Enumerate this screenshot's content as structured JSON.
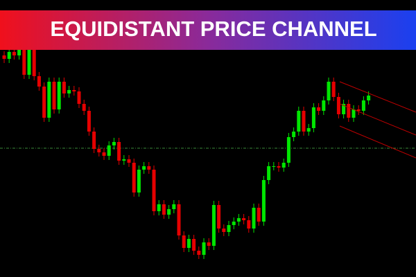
{
  "chart_data": {
    "type": "candlestick",
    "title": "EQUIDISTANT PRICE CHANNEL",
    "up_color": "#00e600",
    "down_color": "#e60000",
    "ylim": [
      0,
      400
    ],
    "open": [
      320,
      315,
      325,
      320,
      330,
      292,
      328,
      290,
      275,
      230,
      282,
      242,
      282,
      265,
      270,
      268,
      250,
      240,
      210,
      185,
      180,
      175,
      190,
      195,
      168,
      170,
      165,
      122,
      155,
      160,
      155,
      95,
      105,
      90,
      98,
      105,
      60,
      42,
      55,
      38,
      32,
      50,
      45,
      104,
      70,
      65,
      75,
      80,
      85,
      82,
      70,
      100,
      80,
      140,
      160,
      160,
      158,
      165,
      202,
      210,
      240,
      210,
      215,
      245,
      240,
      255,
      282,
      260,
      235,
      250,
      230,
      242,
      240,
      255
    ],
    "high": [
      326,
      331,
      331,
      336,
      336,
      334,
      334,
      296,
      281,
      288,
      288,
      288,
      288,
      276,
      276,
      274,
      256,
      246,
      216,
      191,
      186,
      196,
      201,
      201,
      176,
      176,
      171,
      161,
      166,
      166,
      161,
      111,
      111,
      104,
      111,
      111,
      66,
      61,
      61,
      44,
      56,
      56,
      110,
      110,
      76,
      81,
      86,
      91,
      91,
      88,
      106,
      106,
      146,
      166,
      166,
      166,
      171,
      208,
      216,
      246,
      246,
      221,
      251,
      251,
      261,
      288,
      288,
      266,
      256,
      256,
      248,
      248,
      261,
      268
    ],
    "low": [
      309,
      309,
      314,
      314,
      286,
      286,
      284,
      269,
      224,
      224,
      236,
      236,
      259,
      259,
      262,
      244,
      234,
      204,
      179,
      174,
      169,
      169,
      184,
      162,
      162,
      159,
      116,
      116,
      149,
      149,
      89,
      89,
      84,
      84,
      92,
      54,
      36,
      36,
      32,
      26,
      26,
      39,
      39,
      64,
      59,
      59,
      69,
      74,
      76,
      64,
      64,
      74,
      74,
      134,
      154,
      152,
      152,
      159,
      196,
      204,
      204,
      204,
      209,
      234,
      234,
      249,
      254,
      229,
      229,
      224,
      224,
      234,
      234,
      249
    ],
    "close": [
      315,
      325,
      320,
      330,
      292,
      328,
      290,
      275,
      230,
      282,
      242,
      282,
      265,
      270,
      268,
      250,
      240,
      210,
      185,
      180,
      175,
      190,
      195,
      168,
      170,
      165,
      122,
      155,
      160,
      155,
      95,
      105,
      90,
      98,
      105,
      60,
      42,
      55,
      38,
      32,
      50,
      45,
      104,
      70,
      65,
      75,
      80,
      85,
      82,
      70,
      100,
      80,
      140,
      160,
      160,
      158,
      165,
      202,
      210,
      240,
      210,
      215,
      245,
      240,
      255,
      282,
      260,
      235,
      250,
      230,
      242,
      240,
      255,
      262
    ]
  }
}
